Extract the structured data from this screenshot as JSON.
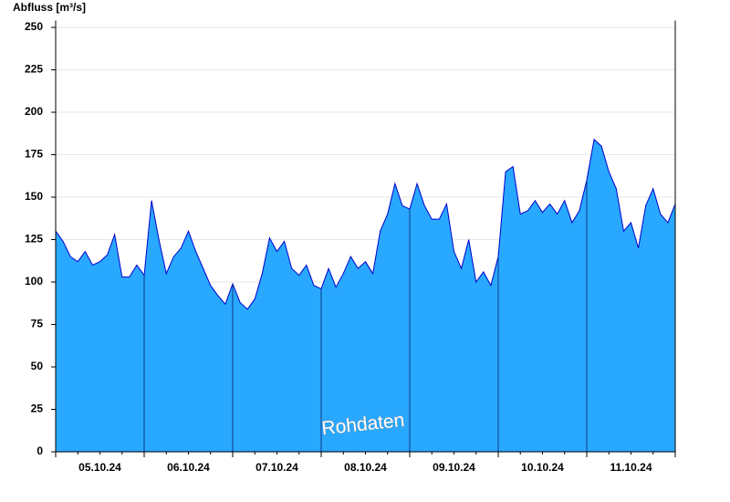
{
  "chart_data": {
    "type": "area",
    "title": "Abfluss [m³/s]",
    "watermark": "Rohdaten",
    "x_labels": [
      "05.10.24",
      "06.10.24",
      "07.10.24",
      "08.10.24",
      "09.10.24",
      "10.10.24",
      "11.10.24"
    ],
    "values": [
      130,
      124,
      115,
      112,
      118,
      110,
      112,
      116,
      128,
      103,
      103,
      110,
      104,
      148,
      125,
      105,
      115,
      120,
      130,
      118,
      108,
      98,
      92,
      87,
      99,
      88,
      84,
      90,
      105,
      126,
      118,
      124,
      108,
      104,
      110,
      98,
      96,
      108,
      97,
      105,
      115,
      108,
      112,
      105,
      130,
      140,
      158,
      145,
      143,
      158,
      145,
      137,
      137,
      146,
      118,
      108,
      125,
      100,
      106,
      98,
      115,
      165,
      168,
      140,
      142,
      148,
      141,
      146,
      140,
      148,
      135,
      142,
      160,
      184,
      180,
      165,
      155,
      130,
      135,
      120,
      145,
      155,
      140,
      135,
      146
    ],
    "color": "#29a8ff",
    "line_color": "#0000cc",
    "ylim": [
      0,
      254
    ],
    "yticks": [
      0,
      25,
      50,
      75,
      100,
      125,
      150,
      175,
      200,
      225,
      250
    ],
    "grid": true
  }
}
